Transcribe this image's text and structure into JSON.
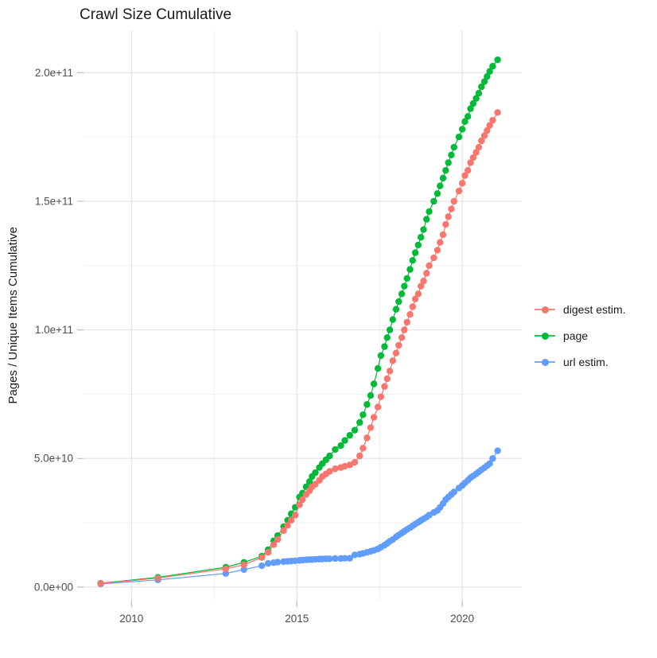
{
  "title": "Crawl Size Cumulative",
  "y_axis_label": "Pages / Unique Items Cumulative",
  "legend": {
    "items": [
      {
        "label": "digest estim.",
        "color": "#F8766D"
      },
      {
        "label": "page",
        "color": "#00BA38"
      },
      {
        "label": "url estim.",
        "color": "#619CFF"
      }
    ]
  },
  "colors": {
    "grid_major": "#E5E5E5",
    "grid_minor": "#F0F0F0",
    "tick_mark": "#BDBDBD",
    "tick_text": "#4D4D4D"
  },
  "chart_data": {
    "type": "line",
    "title": "Crawl Size Cumulative",
    "xlabel": "",
    "ylabel": "Pages / Unique Items Cumulative",
    "value_unit": "1e9 (values below are billions of pages / unique items)",
    "xlim": [
      2008.55,
      2021.8
    ],
    "ylim_e9": [
      -5.3,
      216.5
    ],
    "grid": true,
    "legend_position": "right",
    "x_ticks": [
      {
        "value": 2010,
        "label": "2010"
      },
      {
        "value": 2015,
        "label": "2015"
      },
      {
        "value": 2020,
        "label": "2020"
      }
    ],
    "x_minor_ticks": [
      2012.5,
      2017.5
    ],
    "y_ticks": [
      {
        "value": 0,
        "label": "0.0e+00"
      },
      {
        "value": 50,
        "label": "5.0e+10"
      },
      {
        "value": 100,
        "label": "1.0e+11"
      },
      {
        "value": 150,
        "label": "1.5e+11"
      },
      {
        "value": 200,
        "label": "2.0e+11"
      }
    ],
    "y_minor_ticks": [
      25,
      75,
      125,
      175
    ],
    "series": [
      {
        "name": "url estim.",
        "color": "#619CFF",
        "points": [
          [
            2009.07,
            1.2
          ],
          [
            2010.8,
            2.8
          ],
          [
            2012.85,
            5.3
          ],
          [
            2013.4,
            6.8
          ],
          [
            2013.94,
            8.3
          ],
          [
            2014.13,
            9.2
          ],
          [
            2014.3,
            9.5
          ],
          [
            2014.42,
            9.7
          ],
          [
            2014.6,
            9.9
          ],
          [
            2014.72,
            10.0
          ],
          [
            2014.83,
            10.1
          ],
          [
            2014.95,
            10.2
          ],
          [
            2015.08,
            10.4
          ],
          [
            2015.17,
            10.5
          ],
          [
            2015.28,
            10.6
          ],
          [
            2015.38,
            10.7
          ],
          [
            2015.46,
            10.7
          ],
          [
            2015.56,
            10.8
          ],
          [
            2015.68,
            10.9
          ],
          [
            2015.77,
            10.9
          ],
          [
            2015.88,
            11.0
          ],
          [
            2015.99,
            11.0
          ],
          [
            2016.16,
            11.1
          ],
          [
            2016.33,
            11.1
          ],
          [
            2016.45,
            11.2
          ],
          [
            2016.6,
            11.2
          ],
          [
            2016.75,
            12.5
          ],
          [
            2016.9,
            12.8
          ],
          [
            2017.0,
            13.1
          ],
          [
            2017.12,
            13.5
          ],
          [
            2017.23,
            13.9
          ],
          [
            2017.33,
            14.3
          ],
          [
            2017.45,
            14.8
          ],
          [
            2017.54,
            15.5
          ],
          [
            2017.65,
            16.3
          ],
          [
            2017.73,
            17.0
          ],
          [
            2017.81,
            17.8
          ],
          [
            2017.9,
            18.5
          ],
          [
            2018.0,
            19.5
          ],
          [
            2018.08,
            20.2
          ],
          [
            2018.17,
            21.0
          ],
          [
            2018.25,
            21.7
          ],
          [
            2018.33,
            22.4
          ],
          [
            2018.42,
            23.1
          ],
          [
            2018.5,
            23.8
          ],
          [
            2018.58,
            24.5
          ],
          [
            2018.67,
            25.2
          ],
          [
            2018.75,
            25.9
          ],
          [
            2018.83,
            26.5
          ],
          [
            2018.92,
            27.2
          ],
          [
            2019.0,
            28.0
          ],
          [
            2019.14,
            29.0
          ],
          [
            2019.25,
            29.8
          ],
          [
            2019.33,
            31.0
          ],
          [
            2019.42,
            32.5
          ],
          [
            2019.5,
            34.0
          ],
          [
            2019.58,
            35.0
          ],
          [
            2019.67,
            36.0
          ],
          [
            2019.75,
            37.0
          ],
          [
            2019.9,
            38.5
          ],
          [
            2020.0,
            39.5
          ],
          [
            2020.08,
            40.5
          ],
          [
            2020.17,
            41.5
          ],
          [
            2020.25,
            42.5
          ],
          [
            2020.33,
            43.2
          ],
          [
            2020.42,
            44.0
          ],
          [
            2020.5,
            44.8
          ],
          [
            2020.58,
            45.6
          ],
          [
            2020.67,
            46.4
          ],
          [
            2020.75,
            47.2
          ],
          [
            2020.83,
            48.0
          ],
          [
            2020.92,
            50.0
          ],
          [
            2021.07,
            53.0
          ]
        ]
      },
      {
        "name": "page",
        "color": "#00BA38",
        "points": [
          [
            2009.07,
            1.5
          ],
          [
            2010.8,
            3.8
          ],
          [
            2012.85,
            7.7
          ],
          [
            2013.4,
            9.6
          ],
          [
            2013.94,
            12.0
          ],
          [
            2014.13,
            14.5
          ],
          [
            2014.3,
            18.0
          ],
          [
            2014.42,
            20.0
          ],
          [
            2014.6,
            23.5
          ],
          [
            2014.72,
            26.0
          ],
          [
            2014.83,
            28.5
          ],
          [
            2014.95,
            31.0
          ],
          [
            2015.08,
            35.0
          ],
          [
            2015.17,
            36.5
          ],
          [
            2015.28,
            39.0
          ],
          [
            2015.38,
            41.0
          ],
          [
            2015.46,
            43.0
          ],
          [
            2015.56,
            44.5
          ],
          [
            2015.68,
            46.5
          ],
          [
            2015.77,
            48.0
          ],
          [
            2015.88,
            49.5
          ],
          [
            2015.99,
            51.0
          ],
          [
            2016.16,
            53.5
          ],
          [
            2016.33,
            55.0
          ],
          [
            2016.45,
            57.0
          ],
          [
            2016.6,
            59.0
          ],
          [
            2016.75,
            61.0
          ],
          [
            2016.9,
            64.0
          ],
          [
            2017.0,
            67.0
          ],
          [
            2017.12,
            71.0
          ],
          [
            2017.23,
            74.5
          ],
          [
            2017.33,
            79.0
          ],
          [
            2017.45,
            85.0
          ],
          [
            2017.54,
            90.0
          ],
          [
            2017.65,
            93.5
          ],
          [
            2017.73,
            97.0
          ],
          [
            2017.81,
            100.0
          ],
          [
            2017.9,
            104.0
          ],
          [
            2018.0,
            108.0
          ],
          [
            2018.08,
            111.0
          ],
          [
            2018.17,
            114.0
          ],
          [
            2018.25,
            117.0
          ],
          [
            2018.33,
            120.0
          ],
          [
            2018.42,
            123.5
          ],
          [
            2018.5,
            127.0
          ],
          [
            2018.58,
            130.0
          ],
          [
            2018.67,
            133.0
          ],
          [
            2018.75,
            136.0
          ],
          [
            2018.83,
            139.0
          ],
          [
            2018.92,
            143.0
          ],
          [
            2019.0,
            146.0
          ],
          [
            2019.14,
            150.0
          ],
          [
            2019.25,
            153.0
          ],
          [
            2019.33,
            156.0
          ],
          [
            2019.42,
            159.0
          ],
          [
            2019.5,
            162.0
          ],
          [
            2019.58,
            165.0
          ],
          [
            2019.67,
            168.0
          ],
          [
            2019.75,
            171.0
          ],
          [
            2019.9,
            175.0
          ],
          [
            2020.0,
            178.0
          ],
          [
            2020.08,
            181.0
          ],
          [
            2020.17,
            183.0
          ],
          [
            2020.25,
            186.0
          ],
          [
            2020.33,
            188.0
          ],
          [
            2020.42,
            190.0
          ],
          [
            2020.5,
            192.0
          ],
          [
            2020.58,
            194.5
          ],
          [
            2020.67,
            196.5
          ],
          [
            2020.75,
            198.5
          ],
          [
            2020.83,
            200.5
          ],
          [
            2020.92,
            202.5
          ],
          [
            2021.07,
            205.0
          ]
        ]
      },
      {
        "name": "digest estim.",
        "color": "#F8766D",
        "points": [
          [
            2009.07,
            1.4
          ],
          [
            2010.8,
            3.5
          ],
          [
            2012.85,
            7.1
          ],
          [
            2013.4,
            8.7
          ],
          [
            2013.94,
            11.5
          ],
          [
            2014.13,
            13.5
          ],
          [
            2014.3,
            16.5
          ],
          [
            2014.42,
            18.5
          ],
          [
            2014.6,
            22.0
          ],
          [
            2014.72,
            24.0
          ],
          [
            2014.83,
            26.0
          ],
          [
            2014.95,
            28.0
          ],
          [
            2015.08,
            32.0
          ],
          [
            2015.17,
            34.0
          ],
          [
            2015.28,
            36.0
          ],
          [
            2015.38,
            37.5
          ],
          [
            2015.46,
            39.0
          ],
          [
            2015.56,
            40.0
          ],
          [
            2015.68,
            41.5
          ],
          [
            2015.77,
            43.0
          ],
          [
            2015.88,
            44.0
          ],
          [
            2015.99,
            45.0
          ],
          [
            2016.16,
            46.0
          ],
          [
            2016.33,
            46.5
          ],
          [
            2016.45,
            47.0
          ],
          [
            2016.6,
            47.5
          ],
          [
            2016.75,
            48.5
          ],
          [
            2016.9,
            51.0
          ],
          [
            2017.0,
            54.0
          ],
          [
            2017.12,
            58.0
          ],
          [
            2017.23,
            62.0
          ],
          [
            2017.33,
            66.0
          ],
          [
            2017.45,
            70.0
          ],
          [
            2017.54,
            74.0
          ],
          [
            2017.65,
            78.0
          ],
          [
            2017.73,
            81.0
          ],
          [
            2017.81,
            84.0
          ],
          [
            2017.9,
            88.0
          ],
          [
            2018.0,
            91.0
          ],
          [
            2018.08,
            94.0
          ],
          [
            2018.17,
            97.0
          ],
          [
            2018.25,
            100.0
          ],
          [
            2018.33,
            103.0
          ],
          [
            2018.42,
            106.0
          ],
          [
            2018.5,
            109.0
          ],
          [
            2018.58,
            112.0
          ],
          [
            2018.67,
            114.0
          ],
          [
            2018.75,
            117.0
          ],
          [
            2018.83,
            119.0
          ],
          [
            2018.92,
            122.0
          ],
          [
            2019.0,
            125.0
          ],
          [
            2019.14,
            128.0
          ],
          [
            2019.25,
            131.0
          ],
          [
            2019.33,
            134.0
          ],
          [
            2019.42,
            137.0
          ],
          [
            2019.5,
            141.0
          ],
          [
            2019.58,
            144.0
          ],
          [
            2019.67,
            147.0
          ],
          [
            2019.75,
            150.0
          ],
          [
            2019.9,
            154.0
          ],
          [
            2020.0,
            157.0
          ],
          [
            2020.08,
            160.0
          ],
          [
            2020.17,
            162.0
          ],
          [
            2020.25,
            165.0
          ],
          [
            2020.33,
            167.0
          ],
          [
            2020.42,
            169.0
          ],
          [
            2020.5,
            171.0
          ],
          [
            2020.58,
            173.5
          ],
          [
            2020.67,
            175.5
          ],
          [
            2020.75,
            177.5
          ],
          [
            2020.83,
            179.5
          ],
          [
            2020.92,
            181.5
          ],
          [
            2021.07,
            184.5
          ]
        ]
      }
    ]
  }
}
